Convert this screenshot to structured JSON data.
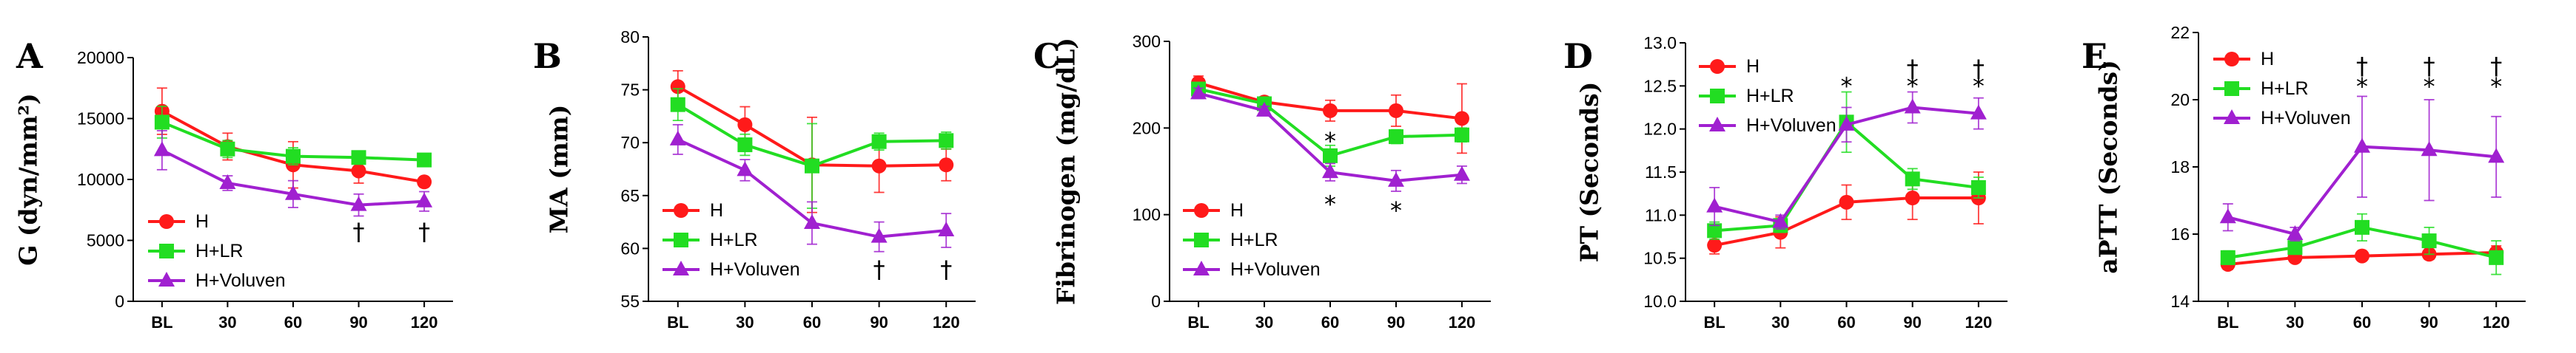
{
  "chart_data": [
    {
      "type": "line",
      "panel": "A",
      "ylabel": "G (dyn/mm²)",
      "categories": [
        "BL",
        "30",
        "60",
        "90",
        "120"
      ],
      "ylim": [
        0,
        20000
      ],
      "yticks": [
        "0",
        "5000",
        "10000",
        "15000",
        "20000"
      ],
      "legend_position": "bottom-left",
      "series": [
        {
          "name": "H",
          "color": "#ff1a1a",
          "marker": "circle",
          "values": [
            15600,
            12700,
            11200,
            10700,
            9800
          ],
          "errors": [
            1900,
            1100,
            1900,
            1000,
            400
          ]
        },
        {
          "name": "H+LR",
          "color": "#22dd22",
          "marker": "square",
          "values": [
            14700,
            12500,
            11900,
            11800,
            11600
          ],
          "errors": [
            1300,
            700,
            700,
            500,
            300
          ]
        },
        {
          "name": "H+Voluven",
          "color": "#a020d0",
          "marker": "triangle",
          "values": [
            12400,
            9700,
            8800,
            7900,
            8200
          ],
          "errors": [
            1600,
            600,
            1100,
            900,
            800
          ]
        }
      ],
      "annotations": [
        {
          "x": "90",
          "text": "†",
          "value": 5700
        },
        {
          "x": "120",
          "text": "†",
          "value": 5700
        }
      ]
    },
    {
      "type": "line",
      "panel": "B",
      "ylabel": "MA (mm)",
      "categories": [
        "BL",
        "30",
        "60",
        "90",
        "120"
      ],
      "ylim": [
        55,
        80
      ],
      "yticks": [
        "55",
        "60",
        "65",
        "70",
        "75",
        "80"
      ],
      "legend_position": "bottom-left",
      "series": [
        {
          "name": "H",
          "color": "#ff1a1a",
          "marker": "circle",
          "values": [
            75.3,
            71.7,
            67.9,
            67.8,
            67.9
          ],
          "errors": [
            1.5,
            1.7,
            4.5,
            2.5,
            1.5
          ]
        },
        {
          "name": "H+LR",
          "color": "#22dd22",
          "marker": "square",
          "values": [
            73.6,
            69.8,
            67.8,
            70.1,
            70.2
          ],
          "errors": [
            1.5,
            1.0,
            4.0,
            0.8,
            0.8
          ]
        },
        {
          "name": "H+Voluven",
          "color": "#a020d0",
          "marker": "triangle",
          "values": [
            70.3,
            67.4,
            62.4,
            61.1,
            61.7
          ],
          "errors": [
            1.4,
            1.0,
            2.0,
            1.4,
            1.6
          ]
        }
      ],
      "annotations": [
        {
          "x": "90",
          "text": "†",
          "value": 58.0
        },
        {
          "x": "120",
          "text": "†",
          "value": 58.0
        }
      ]
    },
    {
      "type": "line",
      "panel": "C",
      "ylabel": "Fibrinogen (mg/dL)",
      "categories": [
        "BL",
        "30",
        "60",
        "90",
        "120"
      ],
      "ylim": [
        0,
        300
      ],
      "yticks": [
        "0",
        "100",
        "200",
        "300"
      ],
      "legend_position": "bottom-left",
      "series": [
        {
          "name": "H",
          "color": "#ff1a1a",
          "marker": "circle",
          "values": [
            252,
            230,
            220,
            220,
            211
          ],
          "errors": [
            8,
            6,
            12,
            18,
            40
          ]
        },
        {
          "name": "H+LR",
          "color": "#22dd22",
          "marker": "square",
          "values": [
            245,
            228,
            168,
            190,
            192
          ],
          "errors": [
            6,
            5,
            12,
            8,
            8
          ]
        },
        {
          "name": "H+Voluven",
          "color": "#a020d0",
          "marker": "triangle",
          "values": [
            240,
            220,
            149,
            139,
            146
          ],
          "errors": [
            6,
            5,
            10,
            12,
            10
          ]
        }
      ],
      "annotations": [
        {
          "x": "60",
          "text": "*",
          "value": 185
        },
        {
          "x": "60",
          "text": "*",
          "value": 112
        },
        {
          "x": "90",
          "text": "*",
          "value": 105
        }
      ]
    },
    {
      "type": "line",
      "panel": "D",
      "ylabel": "PT (Seconds)",
      "categories": [
        "BL",
        "30",
        "60",
        "90",
        "120"
      ],
      "ylim": [
        10.0,
        13.0
      ],
      "yticks": [
        "10.0",
        "10.5",
        "11.0",
        "11.5",
        "12.0",
        "12.5",
        "13.0"
      ],
      "legend_position": "top-left",
      "series": [
        {
          "name": "H",
          "color": "#ff1a1a",
          "marker": "circle",
          "values": [
            10.65,
            10.8,
            11.15,
            11.2,
            11.2
          ],
          "errors": [
            0.1,
            0.18,
            0.2,
            0.25,
            0.3
          ]
        },
        {
          "name": "H+LR",
          "color": "#22dd22",
          "marker": "square",
          "values": [
            10.82,
            10.88,
            12.08,
            11.42,
            11.32
          ],
          "errors": [
            0.1,
            0.08,
            0.35,
            0.12,
            0.12
          ]
        },
        {
          "name": "H+Voluven",
          "color": "#a020d0",
          "marker": "triangle",
          "values": [
            11.1,
            10.92,
            12.05,
            12.25,
            12.18
          ],
          "errors": [
            0.22,
            0.08,
            0.2,
            0.18,
            0.18
          ]
        }
      ],
      "annotations": [
        {
          "x": "60",
          "text": "*",
          "value": 12.5
        },
        {
          "x": "90",
          "text": "*",
          "value": 12.5
        },
        {
          "x": "90",
          "text": "†",
          "value": 12.7
        },
        {
          "x": "120",
          "text": "*",
          "value": 12.5
        },
        {
          "x": "120",
          "text": "†",
          "value": 12.7
        }
      ]
    },
    {
      "type": "line",
      "panel": "E",
      "ylabel": "aPTT (Seconds)",
      "categories": [
        "BL",
        "30",
        "60",
        "90",
        "120"
      ],
      "ylim": [
        14,
        22
      ],
      "yticks": [
        "14",
        "16",
        "18",
        "20",
        "22"
      ],
      "legend_position": "top-left",
      "series": [
        {
          "name": "H",
          "color": "#ff1a1a",
          "marker": "circle",
          "values": [
            15.1,
            15.3,
            15.35,
            15.4,
            15.45
          ],
          "errors": [
            0.15,
            0.1,
            0.1,
            0.15,
            0.2
          ]
        },
        {
          "name": "H+LR",
          "color": "#22dd22",
          "marker": "square",
          "values": [
            15.3,
            15.6,
            16.2,
            15.8,
            15.3
          ],
          "errors": [
            0.2,
            0.2,
            0.4,
            0.4,
            0.5
          ]
        },
        {
          "name": "H+Voluven",
          "color": "#a020d0",
          "marker": "triangle",
          "values": [
            16.5,
            16.0,
            18.6,
            18.5,
            18.3
          ],
          "errors": [
            0.4,
            0.2,
            1.5,
            1.5,
            1.2
          ]
        }
      ],
      "annotations": [
        {
          "x": "60",
          "text": "*",
          "value": 20.4
        },
        {
          "x": "60",
          "text": "†",
          "value": 21.0
        },
        {
          "x": "90",
          "text": "*",
          "value": 20.4
        },
        {
          "x": "90",
          "text": "†",
          "value": 21.0
        },
        {
          "x": "120",
          "text": "*",
          "value": 20.4
        },
        {
          "x": "120",
          "text": "†",
          "value": 21.0
        }
      ]
    }
  ]
}
